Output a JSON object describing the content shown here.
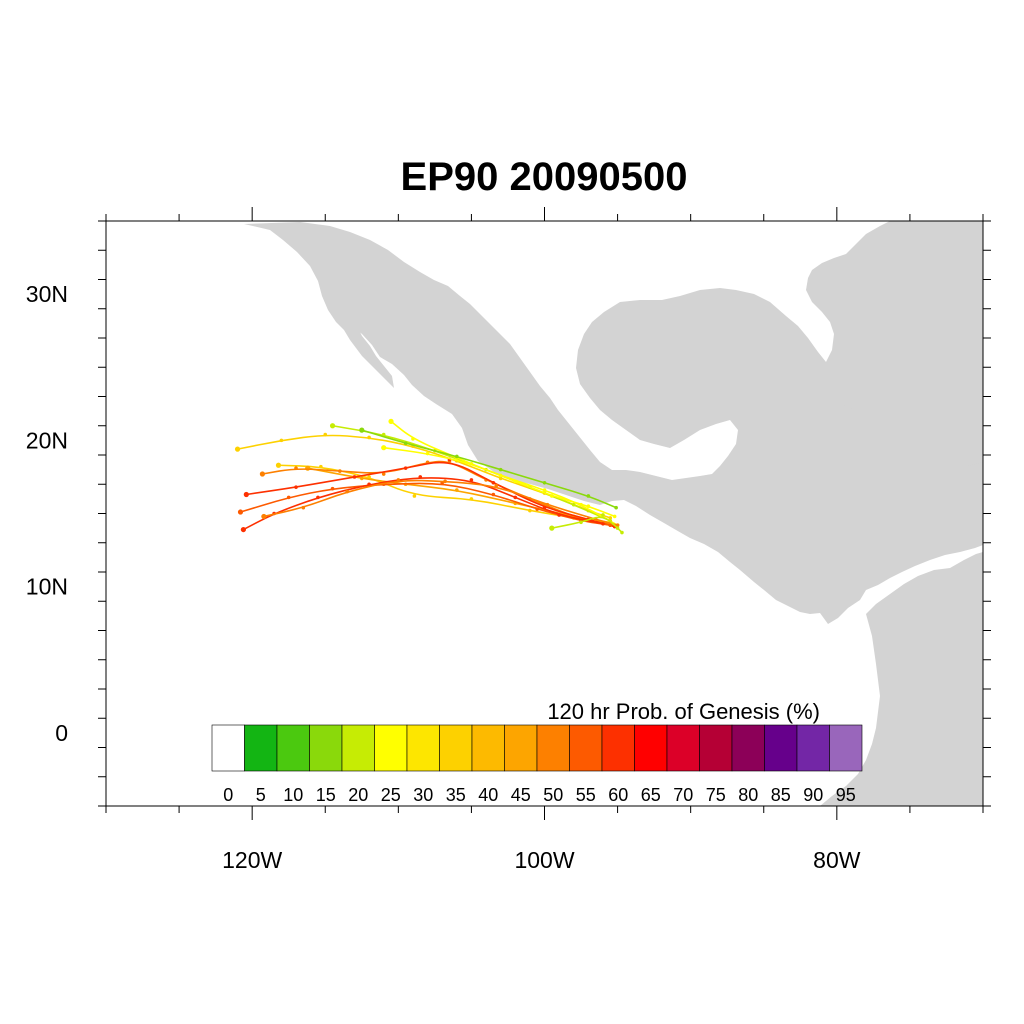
{
  "title": "EP90 20090500",
  "map": {
    "land_color": "#d3d3d3",
    "ocean_color": "#ffffff",
    "lon_range": [
      -130,
      -70
    ],
    "lat_range": [
      -5,
      35
    ],
    "x_ticks": [
      {
        "lon": -120,
        "label": "120W"
      },
      {
        "lon": -100,
        "label": "100W"
      },
      {
        "lon": -80,
        "label": "80W"
      }
    ],
    "y_ticks": [
      {
        "lat": 30,
        "label": "30N"
      },
      {
        "lat": 20,
        "label": "20N"
      },
      {
        "lat": 10,
        "label": "10N"
      },
      {
        "lat": 0,
        "label": "0"
      }
    ]
  },
  "colorbar": {
    "title": "120 hr Prob. of Genesis (%)",
    "labels": [
      "0",
      "5",
      "10",
      "15",
      "20",
      "25",
      "30",
      "35",
      "40",
      "45",
      "50",
      "55",
      "60",
      "65",
      "70",
      "75",
      "80",
      "85",
      "90",
      "95"
    ],
    "colors": [
      "#ffffff",
      "#13b513",
      "#4bc90f",
      "#8ad90b",
      "#c6ec04",
      "#ffff00",
      "#fde600",
      "#fdd100",
      "#fdba00",
      "#fda500",
      "#fd8000",
      "#fd5a00",
      "#fd3000",
      "#ff0000",
      "#dc0028",
      "#b50035",
      "#8c0058",
      "#66008b",
      "#7326a6",
      "#9966bb"
    ]
  },
  "chart_data": {
    "type": "map-tracks",
    "tracks": [
      {
        "color": "#fdd100",
        "points": [
          [
            -121,
            19.4
          ],
          [
            -118,
            20.0
          ],
          [
            -115,
            20.4
          ],
          [
            -112,
            20.2
          ],
          [
            -109,
            19.6
          ],
          [
            -106,
            18.6
          ],
          [
            -103,
            17.4
          ],
          [
            -100,
            16.4
          ],
          [
            -97,
            15.2
          ],
          [
            -95.5,
            14.7
          ]
        ]
      },
      {
        "color": "#c6ec04",
        "points": [
          [
            -114.5,
            21.0
          ],
          [
            -111,
            20.4
          ],
          [
            -107.5,
            19.3
          ],
          [
            -104,
            18.0
          ],
          [
            -101,
            16.8
          ],
          [
            -98,
            15.6
          ],
          [
            -95.5,
            14.5
          ]
        ]
      },
      {
        "color": "#ffff00",
        "points": [
          [
            -110.5,
            21.3
          ],
          [
            -109,
            20.1
          ],
          [
            -106,
            18.8
          ],
          [
            -103,
            17.6
          ],
          [
            -100,
            16.6
          ],
          [
            -97.5,
            15.6
          ],
          [
            -95,
            14.2
          ]
        ]
      },
      {
        "color": "#fdd100",
        "points": [
          [
            -118.2,
            18.3
          ],
          [
            -115.3,
            18.2
          ],
          [
            -112,
            17.5
          ],
          [
            -108.9,
            16.2
          ],
          [
            -105,
            16.0
          ],
          [
            -101,
            15.2
          ],
          [
            -98,
            14.7
          ],
          [
            -95.5,
            14.4
          ]
        ]
      },
      {
        "color": "#fda500",
        "points": [
          [
            -116.2,
            18.1
          ],
          [
            -112.5,
            17.4
          ],
          [
            -109.5,
            17.0
          ],
          [
            -106,
            16.6
          ],
          [
            -102,
            15.7
          ],
          [
            -98,
            14.8
          ],
          [
            -95.5,
            14.3
          ]
        ]
      },
      {
        "color": "#fd8000",
        "points": [
          [
            -119.3,
            17.7
          ],
          [
            -117,
            18.1
          ],
          [
            -114,
            17.9
          ],
          [
            -111,
            17.7
          ],
          [
            -108,
            18.5
          ],
          [
            -106.5,
            18.6
          ],
          [
            -104,
            17.3
          ],
          [
            -101,
            16.0
          ],
          [
            -97.5,
            14.6
          ],
          [
            -95.3,
            14.2
          ]
        ]
      },
      {
        "color": "#fd3000",
        "points": [
          [
            -120.4,
            16.3
          ],
          [
            -117,
            16.8
          ],
          [
            -113,
            17.5
          ],
          [
            -109.5,
            18.1
          ],
          [
            -106.5,
            18.7
          ],
          [
            -103.5,
            17.1
          ],
          [
            -100,
            15.4
          ],
          [
            -97,
            14.6
          ],
          [
            -95.2,
            14.1
          ]
        ]
      },
      {
        "color": "#fd5a00",
        "points": [
          [
            -120.8,
            15.1
          ],
          [
            -117.5,
            16.1
          ],
          [
            -114.5,
            16.7
          ],
          [
            -111,
            17.0
          ],
          [
            -107,
            17.1
          ],
          [
            -103.5,
            16.3
          ],
          [
            -100.5,
            15.3
          ],
          [
            -97.5,
            14.5
          ],
          [
            -95.5,
            14.2
          ]
        ]
      },
      {
        "color": "#fd3000",
        "points": [
          [
            -120.6,
            13.9
          ],
          [
            -118.5,
            15.0
          ],
          [
            -115.5,
            16.1
          ],
          [
            -112,
            17.0
          ],
          [
            -108.5,
            17.5
          ],
          [
            -105,
            17.3
          ],
          [
            -102,
            16.1
          ],
          [
            -99,
            14.9
          ],
          [
            -96,
            14.3
          ]
        ]
      },
      {
        "color": "#fd8000",
        "points": [
          [
            -119.2,
            14.8
          ],
          [
            -116.5,
            15.4
          ],
          [
            -113.5,
            16.5
          ],
          [
            -110,
            17.3
          ],
          [
            -106.8,
            17.2
          ],
          [
            -103.3,
            16.9
          ],
          [
            -99.8,
            15.6
          ],
          [
            -96.5,
            14.6
          ],
          [
            -95,
            14.2
          ]
        ]
      },
      {
        "color": "#c6ec04",
        "points": [
          [
            -99.5,
            14.0
          ],
          [
            -97.5,
            14.4
          ],
          [
            -96,
            14.9
          ],
          [
            -95,
            14.0
          ],
          [
            -94.7,
            13.7
          ]
        ]
      },
      {
        "color": "#ffff00",
        "points": [
          [
            -111,
            19.5
          ],
          [
            -108,
            19.1
          ],
          [
            -105,
            18.4
          ],
          [
            -102,
            17.2
          ],
          [
            -99.5,
            16.2
          ],
          [
            -97,
            15.5
          ],
          [
            -95.2,
            14.8
          ]
        ]
      },
      {
        "color": "#8ad90b",
        "points": [
          [
            -112.5,
            20.7
          ],
          [
            -109.5,
            19.8
          ],
          [
            -106,
            18.9
          ],
          [
            -103,
            18.0
          ],
          [
            -100,
            17.1
          ],
          [
            -97,
            16.2
          ],
          [
            -95.1,
            15.4
          ]
        ]
      }
    ]
  }
}
